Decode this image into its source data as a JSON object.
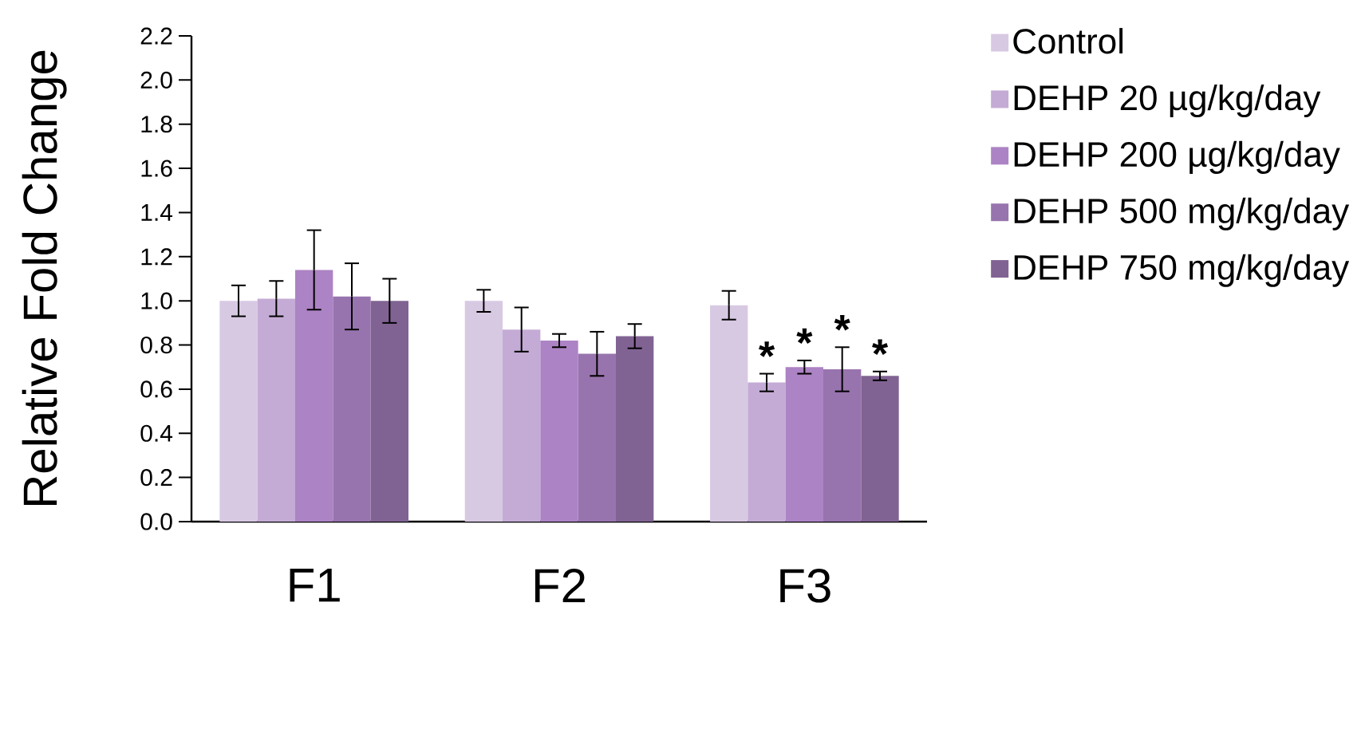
{
  "chart_data": {
    "type": "bar",
    "ylabel": "Relative Fold Change",
    "categories": [
      "F1",
      "F2",
      "F3"
    ],
    "series": [
      {
        "name": "Control",
        "color": "#d8c9e3",
        "values": [
          1.0,
          1.0,
          0.98
        ],
        "errors": [
          0.07,
          0.05,
          0.065
        ]
      },
      {
        "name": "DEHP 20 µg/kg/day",
        "color": "#c4abd5",
        "values": [
          1.01,
          0.87,
          0.63
        ],
        "errors": [
          0.08,
          0.1,
          0.04
        ],
        "value_labels": [
          null,
          null,
          "*"
        ]
      },
      {
        "name": "DEHP 200 µg/kg/day",
        "color": "#ac83c4",
        "values": [
          1.14,
          0.82,
          0.7
        ],
        "errors": [
          0.18,
          0.03,
          0.03
        ],
        "value_labels": [
          null,
          null,
          "*"
        ]
      },
      {
        "name": "DEHP 500 mg/kg/day",
        "color": "#9874ae",
        "values": [
          1.02,
          0.76,
          0.69
        ],
        "errors": [
          0.15,
          0.1,
          0.1
        ],
        "value_labels": [
          null,
          null,
          "*"
        ]
      },
      {
        "name": "DEHP 750 mg/kg/day",
        "color": "#816393",
        "values": [
          1.0,
          0.84,
          0.66
        ],
        "errors": [
          0.1,
          0.055,
          0.02
        ],
        "value_labels": [
          null,
          null,
          "*"
        ]
      }
    ],
    "ylim": [
      0,
      2.2
    ],
    "yticks": [
      {
        "value": 0,
        "label": "0.0"
      },
      {
        "value": 0.2,
        "label": "0.2"
      },
      {
        "value": 0.4,
        "label": "0.4"
      },
      {
        "value": 0.6,
        "label": "0.6"
      },
      {
        "value": 0.8,
        "label": "0.8"
      },
      {
        "value": 1.0,
        "label": "1.0"
      },
      {
        "value": 1.2,
        "label": "1.2"
      },
      {
        "value": 1.4,
        "label": "1.4"
      },
      {
        "value": 1.6,
        "label": "1.6"
      },
      {
        "value": 1.8,
        "label": "1.8"
      },
      {
        "value": 2.0,
        "label": "2.0"
      },
      {
        "value": 2.2,
        "label": "2.2"
      }
    ],
    "legend": "top right"
  }
}
